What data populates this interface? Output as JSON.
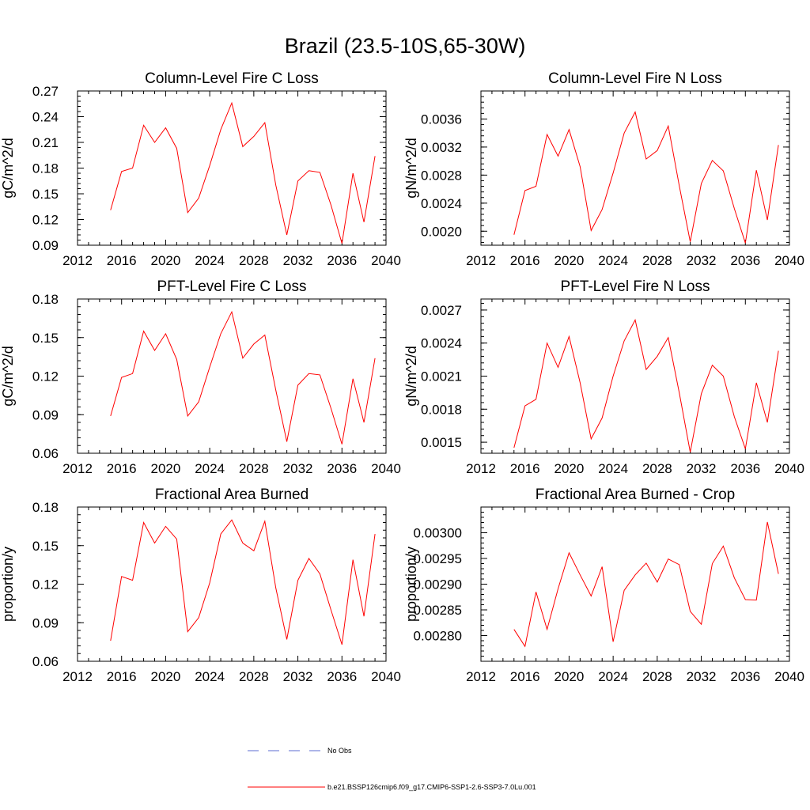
{
  "figure": {
    "title": "Brazil (23.5-10S,65-30W)"
  },
  "legend": [
    {
      "label": "No Obs",
      "color": "#5b6bd0",
      "dash": "dashed"
    },
    {
      "label": "b.e21.BSSP126cmip6.f09_g17.CMIP6-SSP1-2.6-SSP3-7.0Lu.001",
      "color": "#ff0000",
      "dash": "solid"
    }
  ],
  "chart_data": [
    {
      "type": "line",
      "title": "Column-Level Fire C Loss",
      "ylabel": "gC/m^2/d",
      "xlim": [
        2012,
        2040
      ],
      "ylim": [
        0.09,
        0.27
      ],
      "xticks": [
        "2012",
        "2016",
        "2020",
        "2024",
        "2028",
        "2032",
        "2036",
        "2040"
      ],
      "yticks": [
        "0.09",
        "0.12",
        "0.15",
        "0.18",
        "0.21",
        "0.24",
        "0.27"
      ],
      "x": [
        2015,
        2016,
        2017,
        2018,
        2019,
        2020,
        2021,
        2022,
        2023,
        2024,
        2025,
        2026,
        2027,
        2028,
        2029,
        2030,
        2031,
        2032,
        2033,
        2034,
        2035,
        2036,
        2037,
        2038,
        2039
      ],
      "series": [
        {
          "color": "#ff0000",
          "values": [
            0.131,
            0.176,
            0.18,
            0.23,
            0.21,
            0.227,
            0.203,
            0.128,
            0.145,
            0.183,
            0.225,
            0.256,
            0.205,
            0.217,
            0.233,
            0.16,
            0.102,
            0.165,
            0.177,
            0.175,
            0.137,
            0.092,
            0.174,
            0.117,
            0.194
          ]
        }
      ]
    },
    {
      "type": "line",
      "title": "Column-Level Fire N Loss",
      "ylabel": "gN/m^2/d",
      "xlim": [
        2012,
        2040
      ],
      "ylim": [
        0.0018,
        0.004
      ],
      "xticks": [
        "2012",
        "2016",
        "2020",
        "2024",
        "2028",
        "2032",
        "2036",
        "2040"
      ],
      "yticks": [
        "0.0020",
        "0.0024",
        "0.0028",
        "0.0032",
        "0.0036"
      ],
      "ytick_values": [
        0.002,
        0.0024,
        0.0028,
        0.0032,
        0.0036
      ],
      "x": [
        2015,
        2016,
        2017,
        2018,
        2019,
        2020,
        2021,
        2022,
        2023,
        2024,
        2025,
        2026,
        2027,
        2028,
        2029,
        2030,
        2031,
        2032,
        2033,
        2034,
        2035,
        2036,
        2037,
        2038,
        2039
      ],
      "series": [
        {
          "color": "#ff0000",
          "values": [
            0.00195,
            0.00258,
            0.00264,
            0.00338,
            0.00307,
            0.00345,
            0.00292,
            0.00201,
            0.00231,
            0.00283,
            0.0034,
            0.0037,
            0.00303,
            0.00315,
            0.0035,
            0.00265,
            0.00185,
            0.00268,
            0.00301,
            0.00286,
            0.00232,
            0.00183,
            0.00287,
            0.00216,
            0.00323
          ]
        }
      ]
    },
    {
      "type": "line",
      "title": "PFT-Level Fire C Loss",
      "ylabel": "gC/m^2/d",
      "xlim": [
        2012,
        2040
      ],
      "ylim": [
        0.06,
        0.18
      ],
      "xticks": [
        "2012",
        "2016",
        "2020",
        "2024",
        "2028",
        "2032",
        "2036",
        "2040"
      ],
      "yticks": [
        "0.06",
        "0.09",
        "0.12",
        "0.15",
        "0.18"
      ],
      "x": [
        2015,
        2016,
        2017,
        2018,
        2019,
        2020,
        2021,
        2022,
        2023,
        2024,
        2025,
        2026,
        2027,
        2028,
        2029,
        2030,
        2031,
        2032,
        2033,
        2034,
        2035,
        2036,
        2037,
        2038,
        2039
      ],
      "series": [
        {
          "color": "#ff0000",
          "values": [
            0.089,
            0.119,
            0.122,
            0.155,
            0.14,
            0.153,
            0.133,
            0.089,
            0.1,
            0.127,
            0.153,
            0.17,
            0.134,
            0.145,
            0.152,
            0.109,
            0.069,
            0.113,
            0.122,
            0.121,
            0.095,
            0.067,
            0.118,
            0.084,
            0.134
          ]
        }
      ]
    },
    {
      "type": "line",
      "title": "PFT-Level Fire N Loss",
      "ylabel": "gN/m^2/d",
      "xlim": [
        2012,
        2040
      ],
      "ylim": [
        0.0014,
        0.0028
      ],
      "xticks": [
        "2012",
        "2016",
        "2020",
        "2024",
        "2028",
        "2032",
        "2036",
        "2040"
      ],
      "yticks": [
        "0.0015",
        "0.0018",
        "0.0021",
        "0.0024",
        "0.0027"
      ],
      "ytick_values": [
        0.0015,
        0.0018,
        0.0021,
        0.0024,
        0.0027
      ],
      "x": [
        2015,
        2016,
        2017,
        2018,
        2019,
        2020,
        2021,
        2022,
        2023,
        2024,
        2025,
        2026,
        2027,
        2028,
        2029,
        2030,
        2031,
        2032,
        2033,
        2034,
        2035,
        2036,
        2037,
        2038,
        2039
      ],
      "series": [
        {
          "color": "#ff0000",
          "values": [
            0.00145,
            0.00183,
            0.00189,
            0.0024,
            0.00218,
            0.00246,
            0.00204,
            0.00153,
            0.00172,
            0.0021,
            0.00242,
            0.00261,
            0.00216,
            0.00228,
            0.00245,
            0.00195,
            0.00141,
            0.00194,
            0.0022,
            0.0021,
            0.00173,
            0.00144,
            0.00204,
            0.00168,
            0.00233
          ]
        }
      ]
    },
    {
      "type": "line",
      "title": "Fractional Area Burned",
      "ylabel": "proportion/y",
      "xlim": [
        2012,
        2040
      ],
      "ylim": [
        0.06,
        0.18
      ],
      "xticks": [
        "2012",
        "2016",
        "2020",
        "2024",
        "2028",
        "2032",
        "2036",
        "2040"
      ],
      "yticks": [
        "0.06",
        "0.09",
        "0.12",
        "0.15",
        "0.18"
      ],
      "x": [
        2015,
        2016,
        2017,
        2018,
        2019,
        2020,
        2021,
        2022,
        2023,
        2024,
        2025,
        2026,
        2027,
        2028,
        2029,
        2030,
        2031,
        2032,
        2033,
        2034,
        2035,
        2036,
        2037,
        2038,
        2039
      ],
      "series": [
        {
          "color": "#ff0000",
          "values": [
            0.076,
            0.126,
            0.123,
            0.168,
            0.152,
            0.165,
            0.155,
            0.083,
            0.094,
            0.121,
            0.159,
            0.17,
            0.152,
            0.146,
            0.169,
            0.117,
            0.077,
            0.123,
            0.14,
            0.128,
            0.1,
            0.073,
            0.139,
            0.095,
            0.159
          ]
        }
      ]
    },
    {
      "type": "line",
      "title": "Fractional Area Burned - Crop",
      "ylabel": "proportion/y",
      "xlim": [
        2012,
        2040
      ],
      "ylim": [
        0.00275,
        0.00305
      ],
      "xticks": [
        "2012",
        "2016",
        "2020",
        "2024",
        "2028",
        "2032",
        "2036",
        "2040"
      ],
      "yticks": [
        "0.00280",
        "0.00285",
        "0.00290",
        "0.00295",
        "0.00300"
      ],
      "ytick_values": [
        0.0028,
        0.00285,
        0.0029,
        0.00295,
        0.003
      ],
      "x": [
        2015,
        2016,
        2017,
        2018,
        2019,
        2020,
        2021,
        2022,
        2023,
        2024,
        2025,
        2026,
        2027,
        2028,
        2029,
        2030,
        2031,
        2032,
        2033,
        2034,
        2035,
        2036,
        2037,
        2038,
        2039
      ],
      "series": [
        {
          "color": "#ff0000",
          "values": [
            0.002812,
            0.002779,
            0.002885,
            0.002812,
            0.002891,
            0.002961,
            0.002918,
            0.002877,
            0.002934,
            0.002788,
            0.002888,
            0.002918,
            0.002941,
            0.002904,
            0.002949,
            0.002938,
            0.002847,
            0.002822,
            0.00294,
            0.002974,
            0.002912,
            0.00287,
            0.002869,
            0.003021,
            0.00292
          ]
        }
      ]
    }
  ]
}
